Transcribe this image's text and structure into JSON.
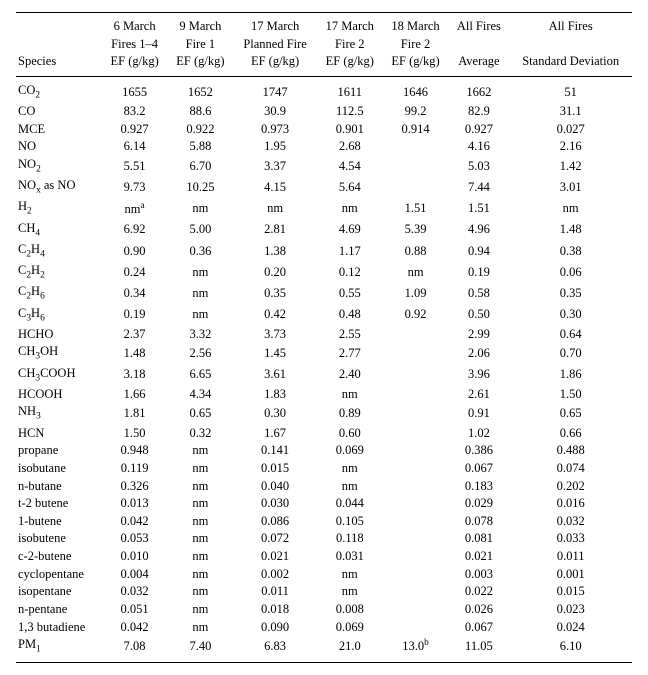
{
  "table": {
    "type": "table",
    "background_color": "#ffffff",
    "text_color": "#000000",
    "rule_color": "#000000",
    "font_family": "Times New Roman",
    "header_fontsize_pt": 10,
    "body_fontsize_pt": 10,
    "columns": [
      {
        "key": "species",
        "lines": [
          "",
          "",
          "Species"
        ],
        "align": "left"
      },
      {
        "key": "c1",
        "lines": [
          "6 March",
          "Fires 1–4",
          "EF (g/kg)"
        ],
        "align": "center"
      },
      {
        "key": "c2",
        "lines": [
          "9 March",
          "Fire 1",
          "EF (g/kg)"
        ],
        "align": "center"
      },
      {
        "key": "c3",
        "lines": [
          "17 March",
          "Planned Fire",
          "EF (g/kg)"
        ],
        "align": "center"
      },
      {
        "key": "c4",
        "lines": [
          "17 March",
          "Fire 2",
          "EF (g/kg)"
        ],
        "align": "center"
      },
      {
        "key": "c5",
        "lines": [
          "18 March",
          "Fire 2",
          "EF (g/kg)"
        ],
        "align": "center"
      },
      {
        "key": "c6",
        "lines": [
          "All Fires",
          "",
          "Average"
        ],
        "align": "center"
      },
      {
        "key": "c7",
        "lines": [
          "All Fires",
          "",
          "Standard Deviation"
        ],
        "align": "center"
      }
    ],
    "rows": [
      {
        "species_html": "CO<span class=\"sub\">2</span>",
        "c1": "1655",
        "c2": "1652",
        "c3": "1747",
        "c4": "1611",
        "c5": "1646",
        "c6": "1662",
        "c7": "51"
      },
      {
        "species_html": "CO",
        "c1": "83.2",
        "c2": "88.6",
        "c3": "30.9",
        "c4": "112.5",
        "c5": "99.2",
        "c6": "82.9",
        "c7": "31.1"
      },
      {
        "species_html": "MCE",
        "c1": "0.927",
        "c2": "0.922",
        "c3": "0.973",
        "c4": "0.901",
        "c5": "0.914",
        "c6": "0.927",
        "c7": "0.027"
      },
      {
        "species_html": "NO",
        "c1": "6.14",
        "c2": "5.88",
        "c3": "1.95",
        "c4": "2.68",
        "c5": "",
        "c6": "4.16",
        "c7": "2.16"
      },
      {
        "species_html": "NO<span class=\"sub\">2</span>",
        "c1": "5.51",
        "c2": "6.70",
        "c3": "3.37",
        "c4": "4.54",
        "c5": "",
        "c6": "5.03",
        "c7": "1.42"
      },
      {
        "species_html": "NO<span class=\"sub\">x</span> as NO",
        "c1": "9.73",
        "c2": "10.25",
        "c3": "4.15",
        "c4": "5.64",
        "c5": "",
        "c6": "7.44",
        "c7": "3.01"
      },
      {
        "species_html": "H<span class=\"sub\">2</span>",
        "c1_html": "nm<span class=\"sup\">a</span>",
        "c2": "nm",
        "c3": "nm",
        "c4": "nm",
        "c5": "1.51",
        "c6": "1.51",
        "c7": "nm"
      },
      {
        "species_html": "CH<span class=\"sub\">4</span>",
        "c1": "6.92",
        "c2": "5.00",
        "c3": "2.81",
        "c4": "4.69",
        "c5": "5.39",
        "c6": "4.96",
        "c7": "1.48"
      },
      {
        "species_html": "C<span class=\"sub\">2</span>H<span class=\"sub\">4</span>",
        "c1": "0.90",
        "c2": "0.36",
        "c3": "1.38",
        "c4": "1.17",
        "c5": "0.88",
        "c6": "0.94",
        "c7": "0.38"
      },
      {
        "species_html": "C<span class=\"sub\">2</span>H<span class=\"sub\">2</span>",
        "c1": "0.24",
        "c2": "nm",
        "c3": "0.20",
        "c4": "0.12",
        "c5": "nm",
        "c6": "0.19",
        "c7": "0.06"
      },
      {
        "species_html": "C<span class=\"sub\">2</span>H<span class=\"sub\">6</span>",
        "c1": "0.34",
        "c2": "nm",
        "c3": "0.35",
        "c4": "0.55",
        "c5": "1.09",
        "c6": "0.58",
        "c7": "0.35"
      },
      {
        "species_html": "C<span class=\"sub\">3</span>H<span class=\"sub\">6</span>",
        "c1": "0.19",
        "c2": "nm",
        "c3": "0.42",
        "c4": "0.48",
        "c5": "0.92",
        "c6": "0.50",
        "c7": "0.30"
      },
      {
        "species_html": "HCHO",
        "c1": "2.37",
        "c2": "3.32",
        "c3": "3.73",
        "c4": "2.55",
        "c5": "",
        "c6": "2.99",
        "c7": "0.64"
      },
      {
        "species_html": "CH<span class=\"sub\">3</span>OH",
        "c1": "1.48",
        "c2": "2.56",
        "c3": "1.45",
        "c4": "2.77",
        "c5": "",
        "c6": "2.06",
        "c7": "0.70"
      },
      {
        "species_html": "CH<span class=\"sub\">3</span>COOH",
        "c1": "3.18",
        "c2": "6.65",
        "c3": "3.61",
        "c4": "2.40",
        "c5": "",
        "c6": "3.96",
        "c7": "1.86"
      },
      {
        "species_html": "HCOOH",
        "c1": "1.66",
        "c2": "4.34",
        "c3": "1.83",
        "c4": "nm",
        "c5": "",
        "c6": "2.61",
        "c7": "1.50"
      },
      {
        "species_html": "NH<span class=\"sub\">3</span>",
        "c1": "1.81",
        "c2": "0.65",
        "c3": "0.30",
        "c4": "0.89",
        "c5": "",
        "c6": "0.91",
        "c7": "0.65"
      },
      {
        "species_html": "HCN",
        "c1": "1.50",
        "c2": "0.32",
        "c3": "1.67",
        "c4": "0.60",
        "c5": "",
        "c6": "1.02",
        "c7": "0.66"
      },
      {
        "species_html": "propane",
        "c1": "0.948",
        "c2": "nm",
        "c3": "0.141",
        "c4": "0.069",
        "c5": "",
        "c6": "0.386",
        "c7": "0.488"
      },
      {
        "species_html": "isobutane",
        "c1": "0.119",
        "c2": "nm",
        "c3": "0.015",
        "c4": "nm",
        "c5": "",
        "c6": "0.067",
        "c7": "0.074"
      },
      {
        "species_html": "n-butane",
        "c1": "0.326",
        "c2": "nm",
        "c3": "0.040",
        "c4": "nm",
        "c5": "",
        "c6": "0.183",
        "c7": "0.202"
      },
      {
        "species_html": "t-2 butene",
        "c1": "0.013",
        "c2": "nm",
        "c3": "0.030",
        "c4": "0.044",
        "c5": "",
        "c6": "0.029",
        "c7": "0.016"
      },
      {
        "species_html": "1-butene",
        "c1": "0.042",
        "c2": "nm",
        "c3": "0.086",
        "c4": "0.105",
        "c5": "",
        "c6": "0.078",
        "c7": "0.032"
      },
      {
        "species_html": "isobutene",
        "c1": "0.053",
        "c2": "nm",
        "c3": "0.072",
        "c4": "0.118",
        "c5": "",
        "c6": "0.081",
        "c7": "0.033"
      },
      {
        "species_html": "c-2-butene",
        "c1": "0.010",
        "c2": "nm",
        "c3": "0.021",
        "c4": "0.031",
        "c5": "",
        "c6": "0.021",
        "c7": "0.011"
      },
      {
        "species_html": "cyclopentane",
        "c1": "0.004",
        "c2": "nm",
        "c3": "0.002",
        "c4": "nm",
        "c5": "",
        "c6": "0.003",
        "c7": "0.001"
      },
      {
        "species_html": "isopentane",
        "c1": "0.032",
        "c2": "nm",
        "c3": "0.011",
        "c4": "nm",
        "c5": "",
        "c6": "0.022",
        "c7": "0.015"
      },
      {
        "species_html": "n-pentane",
        "c1": "0.051",
        "c2": "nm",
        "c3": "0.018",
        "c4": "0.008",
        "c5": "",
        "c6": "0.026",
        "c7": "0.023"
      },
      {
        "species_html": "1,3 butadiene",
        "c1": "0.042",
        "c2": "nm",
        "c3": "0.090",
        "c4": "0.069",
        "c5": "",
        "c6": "0.067",
        "c7": "0.024"
      },
      {
        "species_html": "PM<span class=\"sub\">1</span>",
        "c1": "7.08",
        "c2": "7.40",
        "c3": "6.83",
        "c4": "21.0",
        "c5_html": "13.0<span class=\"sup\">b</span>",
        "c6": "11.05",
        "c7": "6.10"
      }
    ]
  }
}
